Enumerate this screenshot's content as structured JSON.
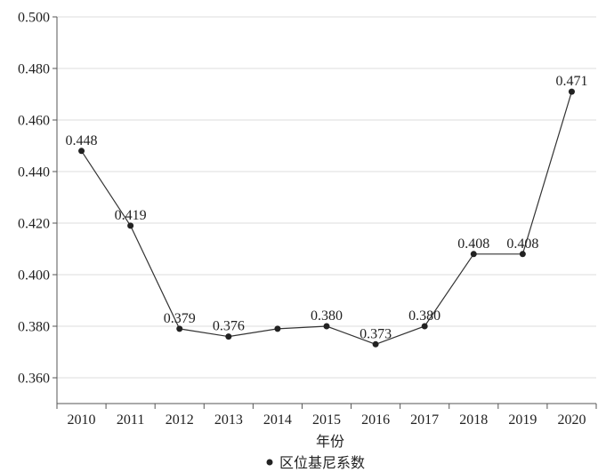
{
  "chart_data": {
    "type": "line",
    "x": [
      "2010",
      "2011",
      "2012",
      "2013",
      "2014",
      "2015",
      "2016",
      "2017",
      "2018",
      "2019",
      "2020"
    ],
    "series": [
      {
        "name": "区位基尼系数",
        "values": [
          0.448,
          0.419,
          0.379,
          0.376,
          0.379,
          0.38,
          0.373,
          0.38,
          0.408,
          0.408,
          0.471
        ]
      }
    ],
    "data_labels": [
      "0.448",
      "0.419",
      "0.379",
      "0.376",
      "",
      "0.380",
      "0.373",
      "0.380",
      "0.408",
      "0.408",
      "0.471"
    ],
    "y_ticks": [
      "0.360",
      "0.380",
      "0.400",
      "0.420",
      "0.440",
      "0.460",
      "0.480",
      "0.500"
    ],
    "ylim": [
      0.35,
      0.5
    ],
    "xlabel": "年份",
    "ylabel": "",
    "title": "",
    "grid": "horizontal",
    "legend_position": "bottom-center",
    "colors": {
      "line": "#333333",
      "marker": "#222222",
      "grid": "#dddddd",
      "axis": "#555555"
    }
  }
}
